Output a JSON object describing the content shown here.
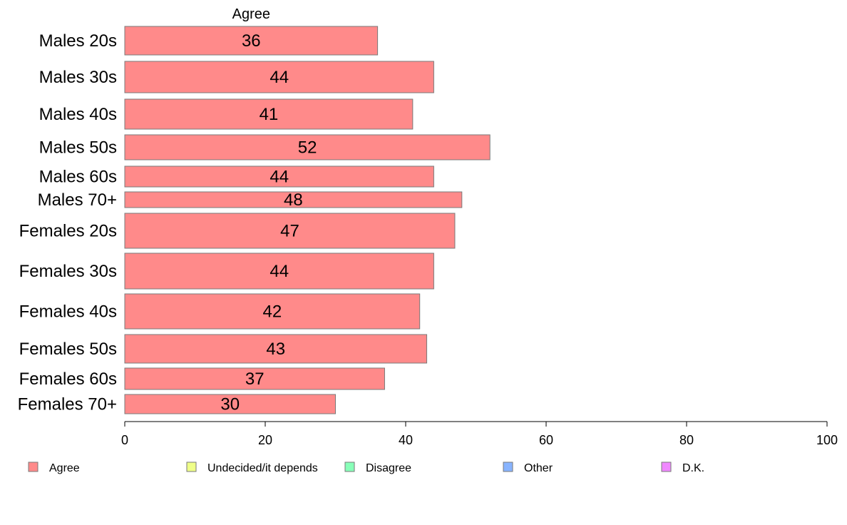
{
  "chart_data": {
    "type": "bar",
    "orientation": "horizontal",
    "stacked": true,
    "categories": [
      "Males 20s",
      "Males 30s",
      "Males 40s",
      "Males 50s",
      "Males 60s",
      "Males 70+",
      "Females 20s",
      "Females 30s",
      "Females 40s",
      "Females 50s",
      "Females 60s",
      "Females 70+"
    ],
    "series": [
      {
        "name": "Agree",
        "color": "#ff8a8a",
        "values": [
          36,
          44,
          41,
          52,
          44,
          48,
          47,
          44,
          42,
          43,
          37,
          30
        ]
      }
    ],
    "xlim": [
      0,
      100
    ],
    "xticks": [
      "0",
      "20",
      "40",
      "60",
      "80",
      "100"
    ],
    "grid": false,
    "legend_position": "bottom",
    "legend": [
      {
        "label": "Agree",
        "color": "#ff8a8a"
      },
      {
        "label": "Undecided/it depends",
        "color": "#efff88"
      },
      {
        "label": "Disagree",
        "color": "#88ffb8"
      },
      {
        "label": "Other",
        "color": "#88b4ff"
      },
      {
        "label": "D.K.",
        "color": "#f088ff"
      }
    ]
  }
}
